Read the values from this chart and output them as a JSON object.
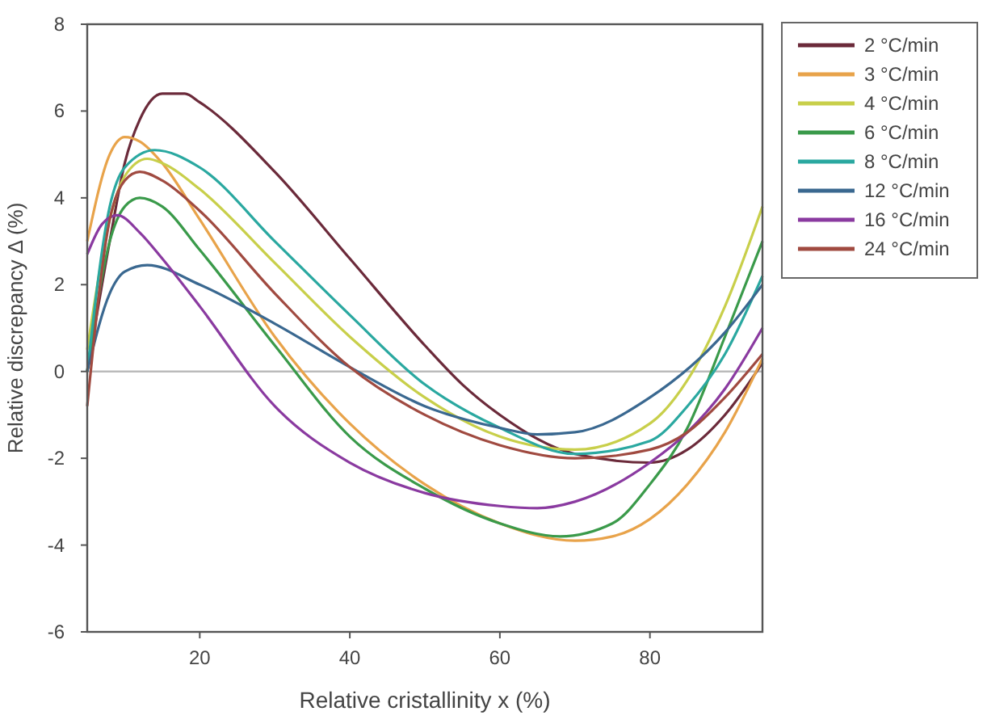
{
  "chart_data": {
    "type": "line",
    "xlabel": "Relative cristallinity x (%)",
    "ylabel": "Relative discrepancy Δ (%)",
    "xlim": [
      5,
      95
    ],
    "xticks": [
      20,
      40,
      60,
      80
    ],
    "ylim": [
      -6,
      8
    ],
    "yticks": [
      -6,
      -4,
      -2,
      0,
      2,
      4,
      6,
      8
    ],
    "grid": false,
    "legend": "right",
    "marker": "none",
    "line_style": "solid",
    "ref_lines": [
      {
        "axis": "y",
        "value": 0,
        "color": "#bbbbbb"
      }
    ],
    "series": [
      {
        "name": "2 °C/min",
        "color": "#6b2a3a",
        "x": [
          5,
          8,
          10,
          12,
          15,
          18,
          20,
          30,
          40,
          50,
          55,
          60,
          70,
          80,
          85,
          90,
          95
        ],
        "values": [
          0,
          3,
          4.8,
          5.8,
          6.4,
          6.4,
          6.2,
          4.6,
          2.6,
          0.6,
          -0.3,
          -1,
          -1.9,
          -2.1,
          -1.8,
          -1,
          0.2
        ]
      },
      {
        "name": "3 °C/min",
        "color": "#e8a34a",
        "x": [
          5,
          8,
          10,
          12,
          15,
          20,
          30,
          40,
          50,
          60,
          70,
          75,
          80,
          85,
          90,
          95
        ],
        "values": [
          3,
          5,
          5.4,
          5.3,
          4.8,
          3.5,
          0.8,
          -1.2,
          -2.6,
          -3.5,
          -3.9,
          -3.8,
          -3.4,
          -2.6,
          -1.4,
          0.3
        ]
      },
      {
        "name": "4 °C/min",
        "color": "#c8cf4a",
        "x": [
          5,
          8,
          10,
          13,
          15,
          20,
          30,
          40,
          50,
          60,
          70,
          80,
          85,
          90,
          95
        ],
        "values": [
          0.5,
          3.5,
          4.5,
          4.9,
          4.8,
          4.2,
          2.5,
          0.8,
          -0.6,
          -1.5,
          -1.8,
          -1.2,
          -0.2,
          1.5,
          3.8
        ]
      },
      {
        "name": "6 °C/min",
        "color": "#3a9a4a",
        "x": [
          5,
          8,
          10,
          12,
          15,
          20,
          30,
          40,
          50,
          60,
          68,
          75,
          80,
          85,
          90,
          95
        ],
        "values": [
          0,
          3,
          3.8,
          4,
          3.8,
          2.8,
          0.6,
          -1.5,
          -2.7,
          -3.5,
          -3.8,
          -3.5,
          -2.6,
          -1.3,
          0.8,
          3
        ]
      },
      {
        "name": "8 °C/min",
        "color": "#2aa8a0",
        "x": [
          5,
          8,
          10,
          14,
          20,
          30,
          40,
          50,
          60,
          70,
          80,
          85,
          90,
          95
        ],
        "values": [
          0,
          3.8,
          4.7,
          5.1,
          4.7,
          3,
          1.3,
          -0.3,
          -1.3,
          -1.9,
          -1.6,
          -0.8,
          0.4,
          2.2
        ]
      },
      {
        "name": "12 °C/min",
        "color": "#3a6890",
        "x": [
          5,
          8,
          10,
          13,
          20,
          30,
          40,
          50,
          60,
          65,
          70,
          80,
          90,
          95
        ],
        "values": [
          0,
          1.8,
          2.3,
          2.45,
          2,
          1.1,
          0.1,
          -0.8,
          -1.3,
          -1.45,
          -1.4,
          -0.6,
          0.9,
          2
        ]
      },
      {
        "name": "16 °C/min",
        "color": "#8a3aa0",
        "x": [
          5,
          7,
          9,
          12,
          15,
          20,
          30,
          40,
          50,
          60,
          65,
          70,
          80,
          85,
          90,
          95
        ],
        "values": [
          2.7,
          3.4,
          3.6,
          3.2,
          2.6,
          1.5,
          -0.8,
          -2.1,
          -2.8,
          -3.1,
          -3.15,
          -3,
          -2.1,
          -1.4,
          -0.4,
          1
        ]
      },
      {
        "name": "24 °C/min",
        "color": "#a04a40",
        "x": [
          5,
          8,
          10,
          12,
          15,
          20,
          30,
          40,
          50,
          60,
          70,
          80,
          85,
          90,
          95
        ],
        "values": [
          -0.8,
          3.5,
          4.4,
          4.6,
          4.4,
          3.7,
          1.8,
          0.1,
          -1,
          -1.7,
          -2,
          -1.8,
          -1.4,
          -0.6,
          0.4
        ]
      }
    ]
  }
}
